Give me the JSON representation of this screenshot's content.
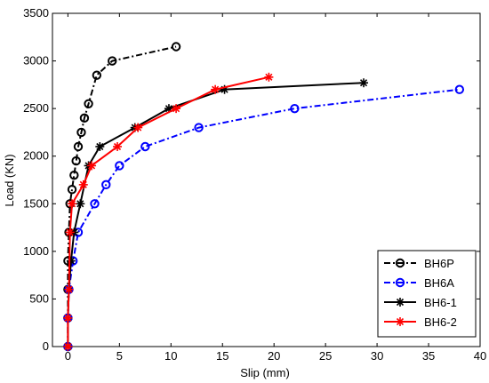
{
  "chart_data": {
    "type": "line",
    "xlabel": "Slip (mm)",
    "ylabel": "Load (KN)",
    "xlim": [
      -1.5,
      40
    ],
    "ylim": [
      0,
      3500
    ],
    "x_ticks": [
      "0",
      "5",
      "10",
      "15",
      "20",
      "25",
      "30",
      "35",
      "40"
    ],
    "x_tick_values": [
      0,
      5,
      10,
      15,
      20,
      25,
      30,
      35,
      40
    ],
    "y_ticks": [
      "0",
      "500",
      "1000",
      "1500",
      "2000",
      "2500",
      "3000",
      "3500"
    ],
    "y_tick_values": [
      0,
      500,
      1000,
      1500,
      2000,
      2500,
      3000,
      3500
    ],
    "grid": false,
    "legend_position": "bottom-right",
    "series": [
      {
        "name": "BH6P",
        "color": "#000000",
        "line": "dashdot",
        "marker": "circle",
        "x": [
          0,
          0,
          0,
          0,
          0.1,
          0.2,
          0.4,
          0.6,
          0.8,
          1.0,
          1.3,
          1.6,
          2.0,
          2.8,
          4.3,
          10.5
        ],
        "y": [
          0,
          300,
          600,
          900,
          1200,
          1500,
          1650,
          1800,
          1950,
          2100,
          2250,
          2400,
          2550,
          2850,
          3000,
          3150
        ]
      },
      {
        "name": "BH6A",
        "color": "#0000FF",
        "line": "dashdot",
        "marker": "circle",
        "x": [
          0,
          0,
          0.1,
          0.5,
          1.0,
          2.6,
          3.7,
          5.0,
          7.5,
          12.7,
          22.0,
          38.0
        ],
        "y": [
          0,
          300,
          600,
          900,
          1200,
          1500,
          1700,
          1900,
          2100,
          2300,
          2500,
          2700
        ]
      },
      {
        "name": "BH6-1",
        "color": "#000000",
        "line": "solid",
        "marker": "star",
        "x": [
          0,
          0,
          0.1,
          0.3,
          0.6,
          1.2,
          2.0,
          3.1,
          6.5,
          9.8,
          15.2,
          28.7
        ],
        "y": [
          0,
          300,
          600,
          900,
          1200,
          1500,
          1900,
          2100,
          2300,
          2500,
          2700,
          2770
        ]
      },
      {
        "name": "BH6-2",
        "color": "#FF0000",
        "line": "solid",
        "marker": "star",
        "x": [
          0,
          0,
          0.1,
          0.2,
          0.4,
          1.5,
          2.3,
          4.8,
          6.8,
          10.5,
          14.3,
          19.5
        ],
        "y": [
          0,
          300,
          600,
          1200,
          1500,
          1700,
          1900,
          2100,
          2300,
          2500,
          2700,
          2830
        ]
      }
    ]
  }
}
